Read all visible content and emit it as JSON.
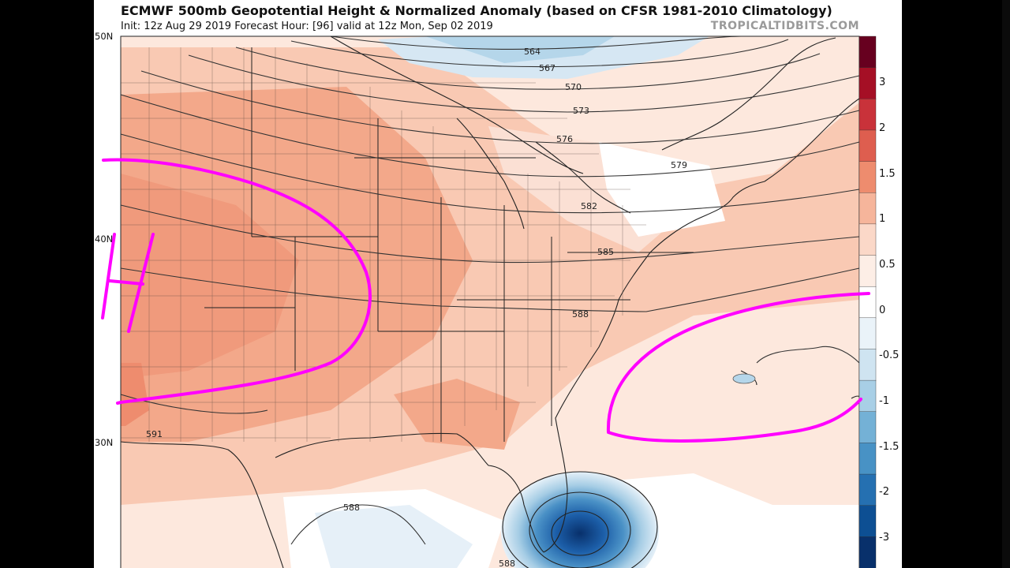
{
  "title": "ECMWF 500mb Geopotential Height & Normalized Anomaly (based on CFSR 1981-2010 Climatology)",
  "subtitle": "Init: 12z Aug 29 2019   Forecast Hour: [96]   valid at 12z Mon, Sep 02 2019",
  "watermark": "TROPICALTIDBITS.COM",
  "latitude_labels": [
    "50N",
    "40N",
    "30N"
  ],
  "contour_labels": [
    "564",
    "567",
    "570",
    "573",
    "576",
    "579",
    "582",
    "585",
    "588",
    "591",
    "588",
    "588"
  ],
  "colorbar": {
    "labels": [
      "3",
      "2",
      "1.5",
      "1",
      "0.5",
      "0",
      "-0.5",
      "-1",
      "-1.5",
      "-2",
      "-3"
    ],
    "colors": [
      "#67001f",
      "#a50f25",
      "#c9323a",
      "#de5e4f",
      "#ee8c6e",
      "#f6b59b",
      "#fbd8c8",
      "#fdeee6",
      "#ffffff",
      "#eaf3f9",
      "#cfe4f1",
      "#a8cfe6",
      "#74b1d6",
      "#4892c5",
      "#2570b1",
      "#0d4f93",
      "#08306b"
    ]
  },
  "annotations": {
    "high_marker": "H"
  }
}
